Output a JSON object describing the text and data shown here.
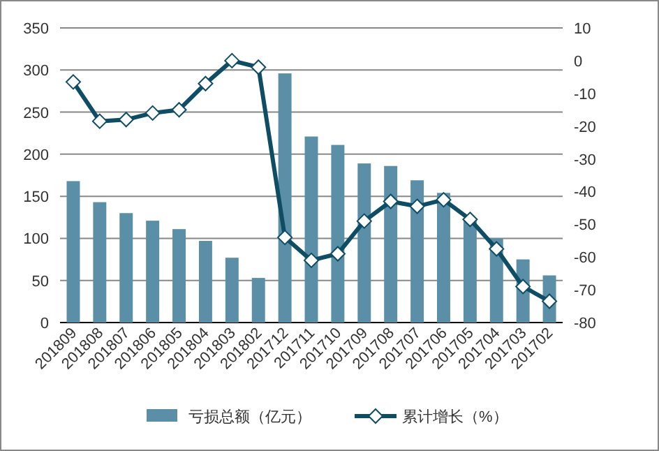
{
  "chart_data": {
    "type": "bar",
    "categories": [
      "201809",
      "201808",
      "201807",
      "201806",
      "201805",
      "201804",
      "201803",
      "201802",
      "201712",
      "201711",
      "201710",
      "201709",
      "201708",
      "201707",
      "201706",
      "201705",
      "201704",
      "201703",
      "201702"
    ],
    "series": [
      {
        "name": "亏损总额（亿元）",
        "color": "#5b8fa8",
        "values": [
          168,
          143,
          130,
          121,
          111,
          97,
          77,
          53,
          296,
          221,
          211,
          189,
          186,
          169,
          154,
          124,
          100,
          75,
          56
        ]
      },
      {
        "name": "累计增长（%）",
        "type": "line",
        "axis": "y2",
        "color": "#0e4d64",
        "marker": "diamond",
        "values": [
          -6.5,
          -18.5,
          -18,
          -16,
          -15,
          -7,
          0,
          -2,
          -54,
          -61,
          -59,
          -49,
          -43,
          -44.5,
          -42.5,
          -48.5,
          -57.5,
          -69,
          -73.5
        ]
      }
    ],
    "ylim": [
      0,
      350
    ],
    "yticks": [
      0,
      50,
      100,
      150,
      200,
      250,
      300,
      350
    ],
    "y2lim": [
      -80,
      10
    ],
    "y2ticks": [
      -80,
      -70,
      -60,
      -50,
      -40,
      -30,
      -20,
      -10,
      0,
      10
    ],
    "grid": "y",
    "legend": "bottom"
  }
}
